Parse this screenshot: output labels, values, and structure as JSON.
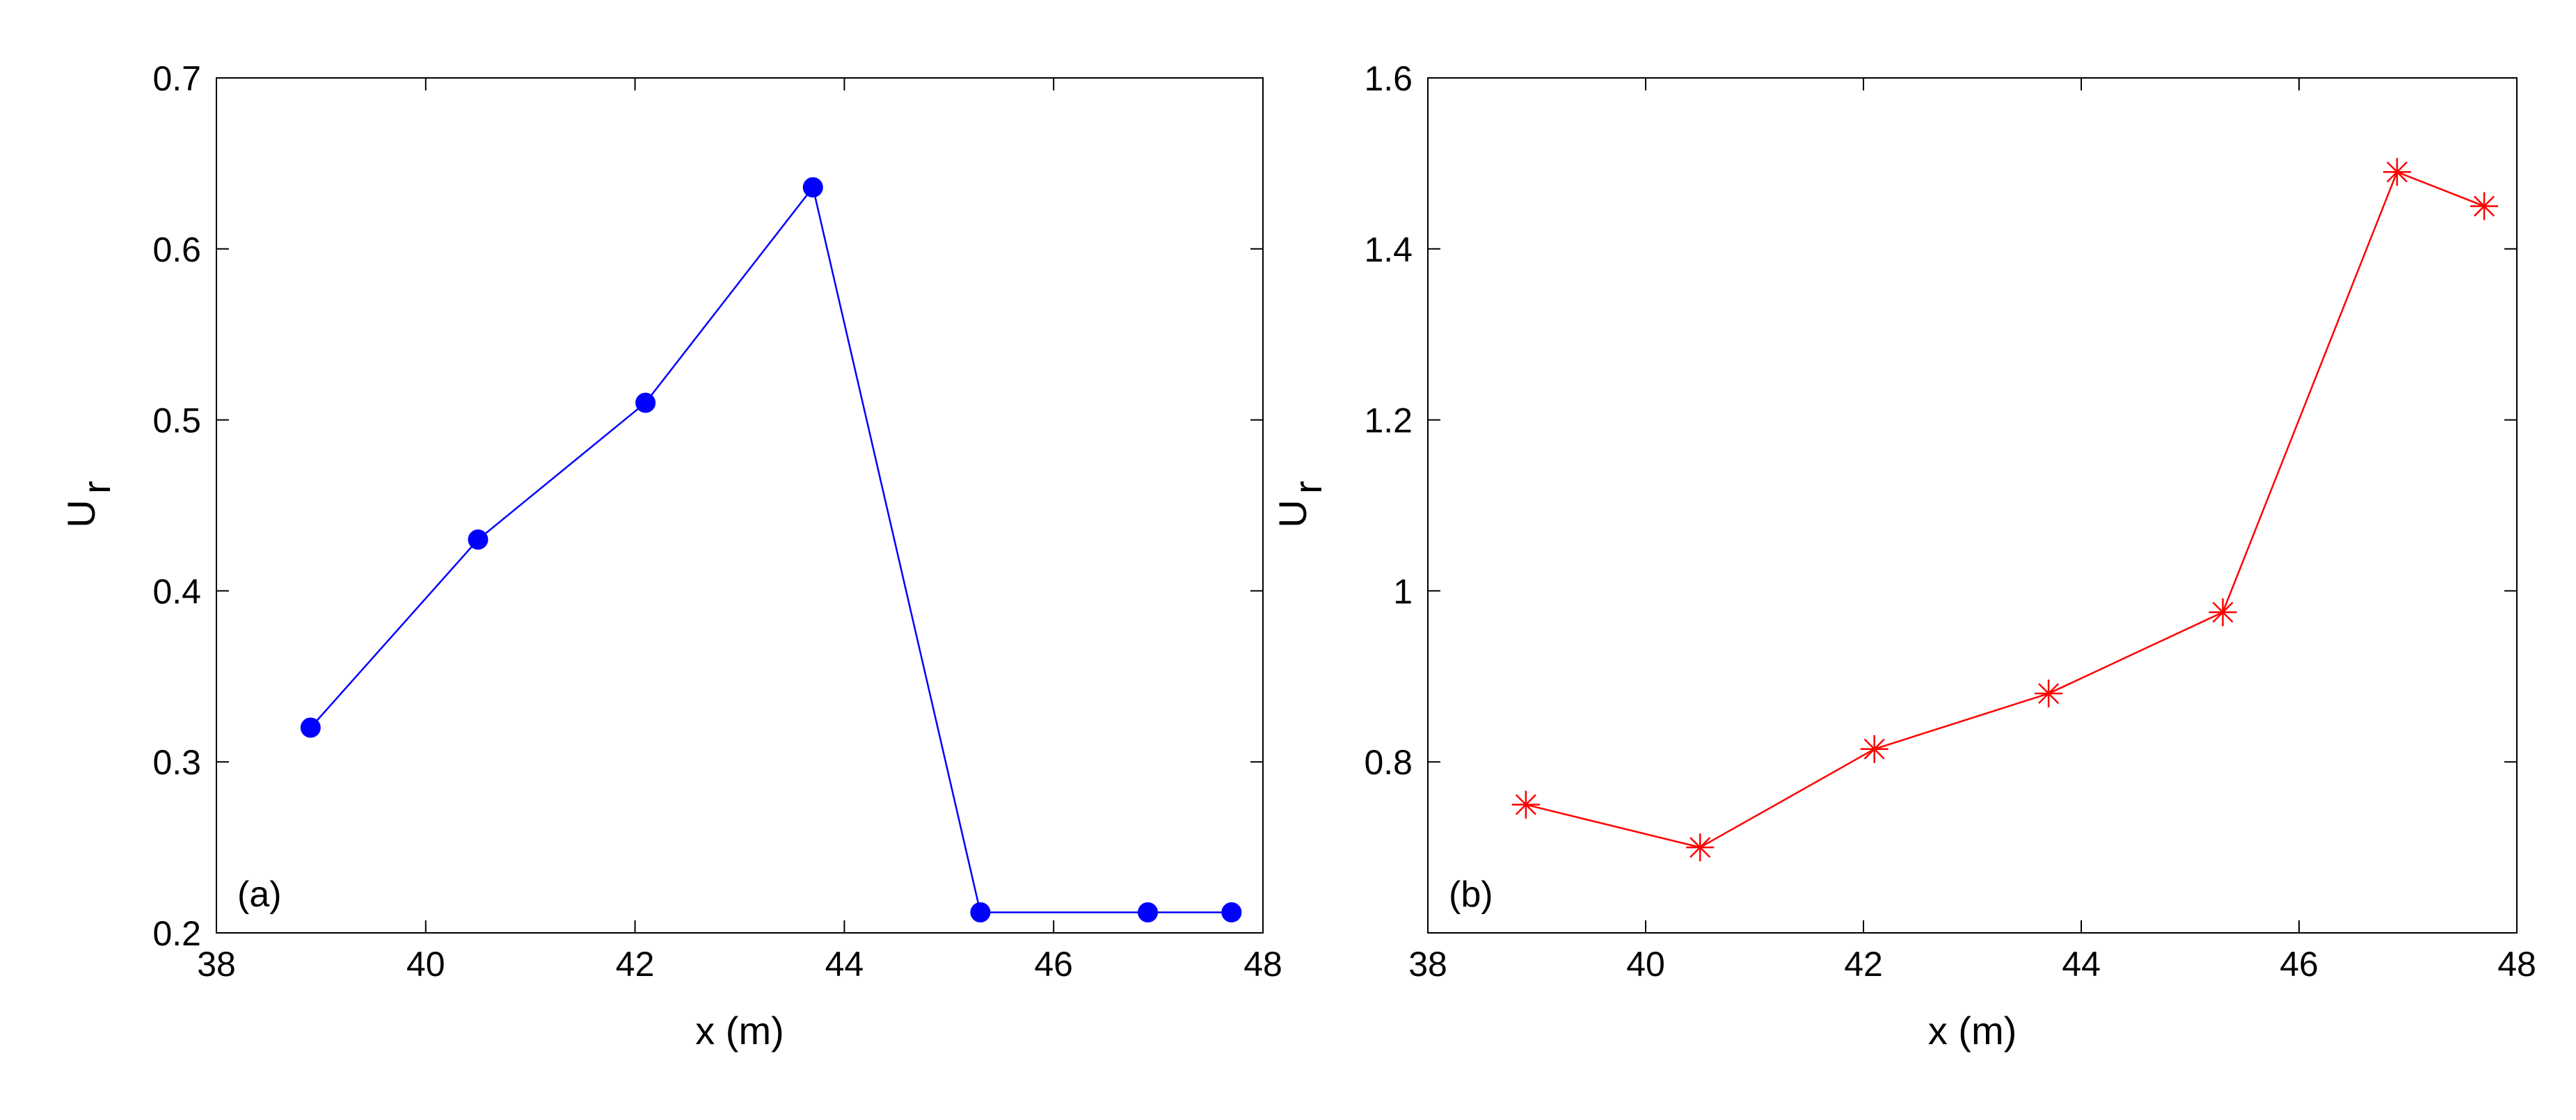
{
  "chart_data": [
    {
      "type": "line",
      "panel_label": "(a)",
      "xlabel": "x (m)",
      "ylabel": "U",
      "ylabel_subscript": "r",
      "xlim": [
        38,
        48
      ],
      "ylim": [
        0.2,
        0.7
      ],
      "xticks": [
        38,
        40,
        42,
        44,
        46,
        48
      ],
      "yticks": [
        0.2,
        0.3,
        0.4,
        0.5,
        0.6,
        0.7
      ],
      "ytick_labels": [
        "0.2",
        "0.3",
        "0.4",
        "0.5",
        "0.6",
        "0.7"
      ],
      "grid": false,
      "series": [
        {
          "color": "#0000ff",
          "marker": "filled-circle",
          "x": [
            38.9,
            40.5,
            42.1,
            43.7,
            45.3,
            46.9,
            47.7
          ],
          "y": [
            0.32,
            0.43,
            0.51,
            0.636,
            0.212,
            0.212,
            0.212
          ]
        }
      ]
    },
    {
      "type": "line",
      "panel_label": "(b)",
      "xlabel": "x (m)",
      "ylabel": "U",
      "ylabel_subscript": "r",
      "xlim": [
        38,
        48
      ],
      "ylim": [
        0.6,
        1.6
      ],
      "xticks": [
        38,
        40,
        42,
        44,
        46,
        48
      ],
      "yticks": [
        0.8,
        1.0,
        1.2,
        1.4,
        1.6
      ],
      "ytick_labels": [
        "0.8",
        "1",
        "1.2",
        "1.4",
        "1.6"
      ],
      "grid": false,
      "series": [
        {
          "color": "#ff0000",
          "marker": "asterisk",
          "x": [
            38.9,
            40.5,
            42.1,
            43.7,
            45.3,
            46.9,
            47.7
          ],
          "y": [
            0.75,
            0.7,
            0.815,
            0.88,
            0.975,
            1.49,
            1.45
          ]
        }
      ]
    }
  ]
}
